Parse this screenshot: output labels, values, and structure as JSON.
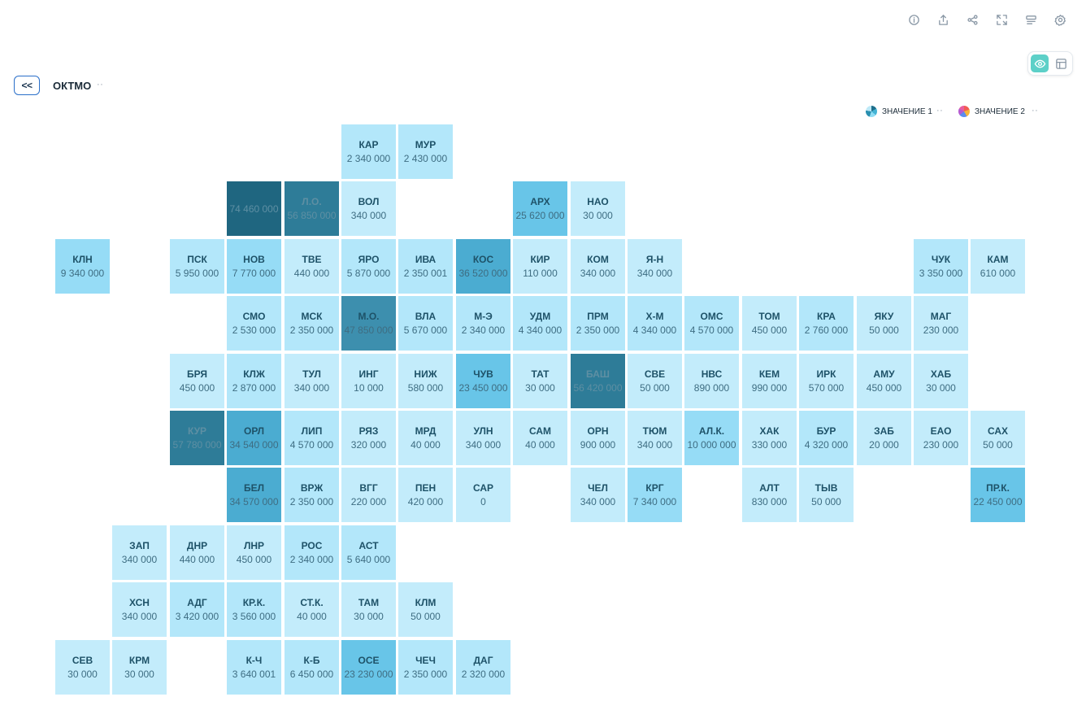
{
  "toolbar": {
    "icons": [
      "info-icon",
      "export-icon",
      "share-icon",
      "fullscreen-icon",
      "filter-icon",
      "settings-icon"
    ]
  },
  "view_toggle": {
    "active": "map",
    "icons": [
      "map-view-icon",
      "table-view-icon"
    ]
  },
  "header": {
    "back_label": "<<",
    "dimension": "ОКТМО",
    "menu_dots": "··"
  },
  "legend": [
    {
      "label": "ЗНАЧЕНИЕ 1",
      "dots": "··"
    },
    {
      "label": "ЗНАЧЕНИЕ 2",
      "dots": "··"
    }
  ],
  "colors": {
    "lightest": "#c3ecfb",
    "light": "#b3e7fa",
    "mid_light": "#96dcf6",
    "mid": "#68c5e8",
    "mid_dark": "#4bacd1",
    "dark": "#3d8fae",
    "darker": "#2e7c98",
    "darkest": "#1f6680"
  },
  "tiles": [
    {
      "code": "КАР",
      "value": "2 340 000",
      "row": 0,
      "col": 5
    },
    {
      "code": "МУР",
      "value": "2 430 000",
      "row": 0,
      "col": 6
    },
    {
      "code": "",
      "value": "74 460 000",
      "row": 1,
      "col": 3
    },
    {
      "code": "Л.О.",
      "value": "56 850 000",
      "row": 1,
      "col": 4
    },
    {
      "code": "ВОЛ",
      "value": "340 000",
      "row": 1,
      "col": 5
    },
    {
      "code": "АРХ",
      "value": "25 620 000",
      "row": 1,
      "col": 8
    },
    {
      "code": "НАО",
      "value": "30 000",
      "row": 1,
      "col": 9
    },
    {
      "code": "КЛН",
      "value": "9 340 000",
      "row": 2,
      "col": 0
    },
    {
      "code": "ПСК",
      "value": "5 950 000",
      "row": 2,
      "col": 2
    },
    {
      "code": "НОВ",
      "value": "7 770 000",
      "row": 2,
      "col": 3
    },
    {
      "code": "ТВЕ",
      "value": "440 000",
      "row": 2,
      "col": 4
    },
    {
      "code": "ЯРО",
      "value": "5 870 000",
      "row": 2,
      "col": 5
    },
    {
      "code": "ИВА",
      "value": "2 350 001",
      "row": 2,
      "col": 6
    },
    {
      "code": "КОС",
      "value": "36 520 000",
      "row": 2,
      "col": 7
    },
    {
      "code": "КИР",
      "value": "110 000",
      "row": 2,
      "col": 8
    },
    {
      "code": "КОМ",
      "value": "340 000",
      "row": 2,
      "col": 9
    },
    {
      "code": "Я-Н",
      "value": "340 000",
      "row": 2,
      "col": 10
    },
    {
      "code": "ЧУК",
      "value": "3 350 000",
      "row": 2,
      "col": 15
    },
    {
      "code": "КАМ",
      "value": "610 000",
      "row": 2,
      "col": 16
    },
    {
      "code": "СМО",
      "value": "2 530 000",
      "row": 3,
      "col": 3
    },
    {
      "code": "МСК",
      "value": "2 350 000",
      "row": 3,
      "col": 4
    },
    {
      "code": "М.О.",
      "value": "47 850 000",
      "row": 3,
      "col": 5
    },
    {
      "code": "ВЛА",
      "value": "5 670 000",
      "row": 3,
      "col": 6
    },
    {
      "code": "М-Э",
      "value": "2 340 000",
      "row": 3,
      "col": 7
    },
    {
      "code": "УДМ",
      "value": "4 340 000",
      "row": 3,
      "col": 8
    },
    {
      "code": "ПРМ",
      "value": "2 350 000",
      "row": 3,
      "col": 9
    },
    {
      "code": "Х-М",
      "value": "4 340 000",
      "row": 3,
      "col": 10
    },
    {
      "code": "ОМС",
      "value": "4 570 000",
      "row": 3,
      "col": 11
    },
    {
      "code": "ТОМ",
      "value": "450 000",
      "row": 3,
      "col": 12
    },
    {
      "code": "КРА",
      "value": "2 760 000",
      "row": 3,
      "col": 13
    },
    {
      "code": "ЯКУ",
      "value": "50 000",
      "row": 3,
      "col": 14
    },
    {
      "code": "МАГ",
      "value": "230 000",
      "row": 3,
      "col": 15
    },
    {
      "code": "БРЯ",
      "value": "450 000",
      "row": 4,
      "col": 2
    },
    {
      "code": "КЛЖ",
      "value": "2 870 000",
      "row": 4,
      "col": 3
    },
    {
      "code": "ТУЛ",
      "value": "340 000",
      "row": 4,
      "col": 4
    },
    {
      "code": "ИНГ",
      "value": "10 000",
      "row": 4,
      "col": 5
    },
    {
      "code": "НИЖ",
      "value": "580 000",
      "row": 4,
      "col": 6
    },
    {
      "code": "ЧУВ",
      "value": "23 450 000",
      "row": 4,
      "col": 7
    },
    {
      "code": "ТАТ",
      "value": "30 000",
      "row": 4,
      "col": 8
    },
    {
      "code": "БАШ",
      "value": "56 420 000",
      "row": 4,
      "col": 9
    },
    {
      "code": "СВЕ",
      "value": "50 000",
      "row": 4,
      "col": 10
    },
    {
      "code": "НВС",
      "value": "890 000",
      "row": 4,
      "col": 11
    },
    {
      "code": "КЕМ",
      "value": "990 000",
      "row": 4,
      "col": 12
    },
    {
      "code": "ИРК",
      "value": "570 000",
      "row": 4,
      "col": 13
    },
    {
      "code": "АМУ",
      "value": "450 000",
      "row": 4,
      "col": 14
    },
    {
      "code": "ХАБ",
      "value": "30 000",
      "row": 4,
      "col": 15
    },
    {
      "code": "КУР",
      "value": "57 780 000",
      "row": 5,
      "col": 2
    },
    {
      "code": "ОРЛ",
      "value": "34 540 000",
      "row": 5,
      "col": 3
    },
    {
      "code": "ЛИП",
      "value": "4 570 000",
      "row": 5,
      "col": 4
    },
    {
      "code": "РЯЗ",
      "value": "320 000",
      "row": 5,
      "col": 5
    },
    {
      "code": "МРД",
      "value": "40 000",
      "row": 5,
      "col": 6
    },
    {
      "code": "УЛН",
      "value": "340 000",
      "row": 5,
      "col": 7
    },
    {
      "code": "САМ",
      "value": "40 000",
      "row": 5,
      "col": 8
    },
    {
      "code": "ОРН",
      "value": "900 000",
      "row": 5,
      "col": 9
    },
    {
      "code": "ТЮМ",
      "value": "340 000",
      "row": 5,
      "col": 10
    },
    {
      "code": "АЛ.К.",
      "value": "10 000 000",
      "row": 5,
      "col": 11
    },
    {
      "code": "ХАК",
      "value": "330 000",
      "row": 5,
      "col": 12
    },
    {
      "code": "БУР",
      "value": "4 320 000",
      "row": 5,
      "col": 13
    },
    {
      "code": "ЗАБ",
      "value": "20 000",
      "row": 5,
      "col": 14
    },
    {
      "code": "ЕАО",
      "value": "230 000",
      "row": 5,
      "col": 15
    },
    {
      "code": "САХ",
      "value": "50 000",
      "row": 5,
      "col": 16
    },
    {
      "code": "БЕЛ",
      "value": "34 570 000",
      "row": 6,
      "col": 3
    },
    {
      "code": "ВРЖ",
      "value": "2 350 000",
      "row": 6,
      "col": 4
    },
    {
      "code": "ВГГ",
      "value": "220 000",
      "row": 6,
      "col": 5
    },
    {
      "code": "ПЕН",
      "value": "420 000",
      "row": 6,
      "col": 6
    },
    {
      "code": "САР",
      "value": "0",
      "row": 6,
      "col": 7
    },
    {
      "code": "ЧЕЛ",
      "value": "340 000",
      "row": 6,
      "col": 9
    },
    {
      "code": "КРГ",
      "value": "7 340 000",
      "row": 6,
      "col": 10
    },
    {
      "code": "АЛТ",
      "value": "830 000",
      "row": 6,
      "col": 12
    },
    {
      "code": "ТЫВ",
      "value": "50 000",
      "row": 6,
      "col": 13
    },
    {
      "code": "ПР.К.",
      "value": "22 450 000",
      "row": 6,
      "col": 16
    },
    {
      "code": "ЗАП",
      "value": "340 000",
      "row": 7,
      "col": 1
    },
    {
      "code": "ДНР",
      "value": "440 000",
      "row": 7,
      "col": 2
    },
    {
      "code": "ЛНР",
      "value": "450 000",
      "row": 7,
      "col": 3
    },
    {
      "code": "РОС",
      "value": "2 340 000",
      "row": 7,
      "col": 4
    },
    {
      "code": "АСТ",
      "value": "5 640 000",
      "row": 7,
      "col": 5
    },
    {
      "code": "ХСН",
      "value": "340 000",
      "row": 8,
      "col": 1
    },
    {
      "code": "АДГ",
      "value": "3 420 000",
      "row": 8,
      "col": 2
    },
    {
      "code": "КР.К.",
      "value": "3 560 000",
      "row": 8,
      "col": 3
    },
    {
      "code": "СТ.К.",
      "value": "40 000",
      "row": 8,
      "col": 4
    },
    {
      "code": "ТАМ",
      "value": "30 000",
      "row": 8,
      "col": 5
    },
    {
      "code": "КЛМ",
      "value": "50 000",
      "row": 8,
      "col": 6
    },
    {
      "code": "СЕВ",
      "value": "30 000",
      "row": 9,
      "col": 0
    },
    {
      "code": "КРМ",
      "value": "30 000",
      "row": 9,
      "col": 1
    },
    {
      "code": "К-Ч",
      "value": "3 640 001",
      "row": 9,
      "col": 3
    },
    {
      "code": "К-Б",
      "value": "6 450 000",
      "row": 9,
      "col": 4
    },
    {
      "code": "ОСЕ",
      "value": "23 230 000",
      "row": 9,
      "col": 5
    },
    {
      "code": "ЧЕЧ",
      "value": "2 350 000",
      "row": 9,
      "col": 6
    },
    {
      "code": "ДАГ",
      "value": "2 320 000",
      "row": 9,
      "col": 7
    }
  ]
}
